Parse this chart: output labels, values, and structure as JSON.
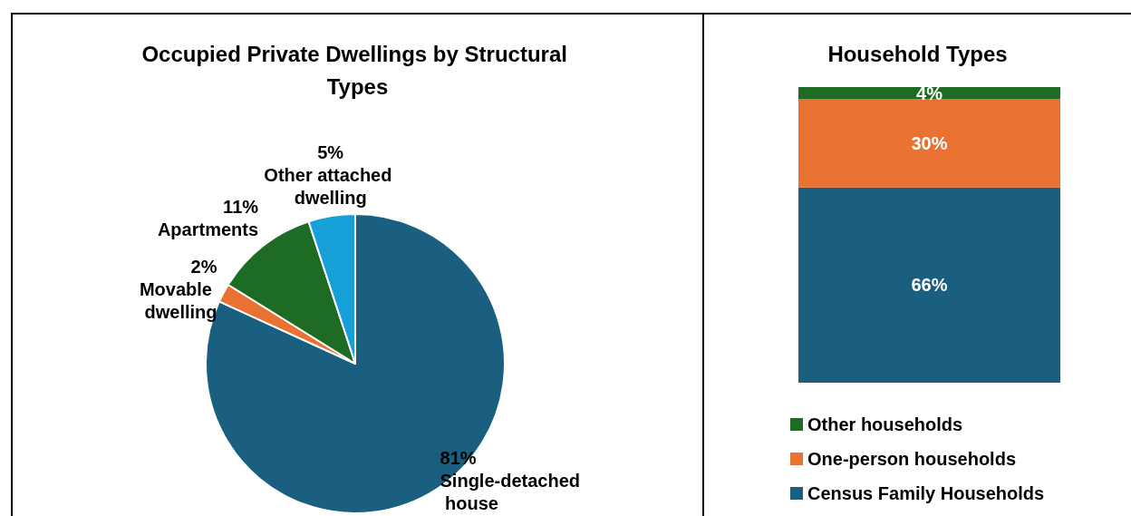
{
  "chart_data": [
    {
      "type": "pie",
      "title": "Occupied Private Dwellings by Structural Types",
      "categories": [
        "Single-detached house",
        "Movable dwelling",
        "Apartments",
        "Other attached dwelling"
      ],
      "values": [
        81,
        2,
        11,
        5
      ],
      "colors": [
        "#1a5f80",
        "#e97131",
        "#1e6b24",
        "#17a0d8"
      ],
      "value_labels": [
        "81%",
        "2%",
        "11%",
        "5%"
      ],
      "legend": false
    },
    {
      "type": "bar",
      "stacked": true,
      "title": "Household Types",
      "categories": [
        null
      ],
      "legend": "bottom",
      "series": [
        {
          "name": "Census Family Households",
          "color": "#1a5f80",
          "values": [
            66
          ],
          "value_labels": [
            "66%"
          ]
        },
        {
          "name": "One-person households",
          "color": "#e97131",
          "values": [
            30
          ],
          "value_labels": [
            "30%"
          ]
        },
        {
          "name": "Other households",
          "color": "#1e6b24",
          "values": [
            4
          ],
          "value_labels": [
            "4%"
          ]
        }
      ]
    }
  ]
}
